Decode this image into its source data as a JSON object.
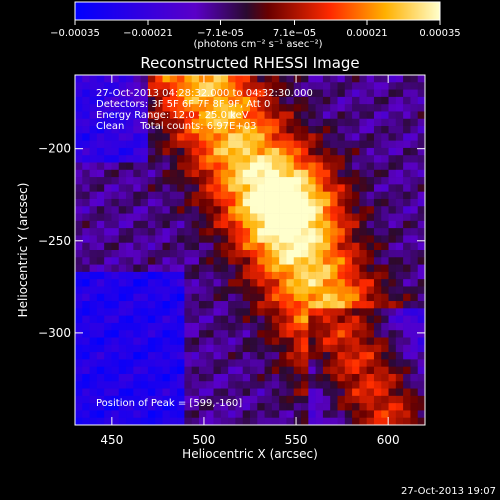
{
  "colorbar": {
    "ticks": [
      "-0.00035",
      "-0.00021",
      "-7.1e-05",
      "7.1e-05",
      "0.00021",
      "0.00035"
    ],
    "unit_label": "(photons cm⁻² s⁻¹ asec⁻²)",
    "range": [
      -0.00035,
      0.00035
    ]
  },
  "chart_data": {
    "type": "heatmap",
    "title": "Reconstructed RHESSI Image",
    "xlabel": "Heliocentric X (arcsec)",
    "ylabel": "Heliocentric Y (arcsec)",
    "xlim": [
      430,
      620
    ],
    "ylim": [
      -350,
      -160
    ],
    "x_ticks": [
      450,
      500,
      550,
      600
    ],
    "y_ticks": [
      -200,
      -250,
      -300
    ],
    "x_tick_labels": [
      "450",
      "500",
      "550",
      "600"
    ],
    "y_tick_labels": [
      "−200",
      "−250",
      "−300"
    ],
    "peak": [
      599,
      -160
    ],
    "annotations": [
      "27-Oct-2013 04:28:32.000 to 04:32:30.000",
      "Detectors: 3F 5F 6F 7F 8F 9F, Att 0",
      "Energy Range: 12.0 - 25.0 keV",
      "Clean     Total counts: 6.97E+03"
    ],
    "peak_label": "Position of Peak = [599,-160]"
  },
  "footer_timestamp": "27-Oct-2013 19:07"
}
